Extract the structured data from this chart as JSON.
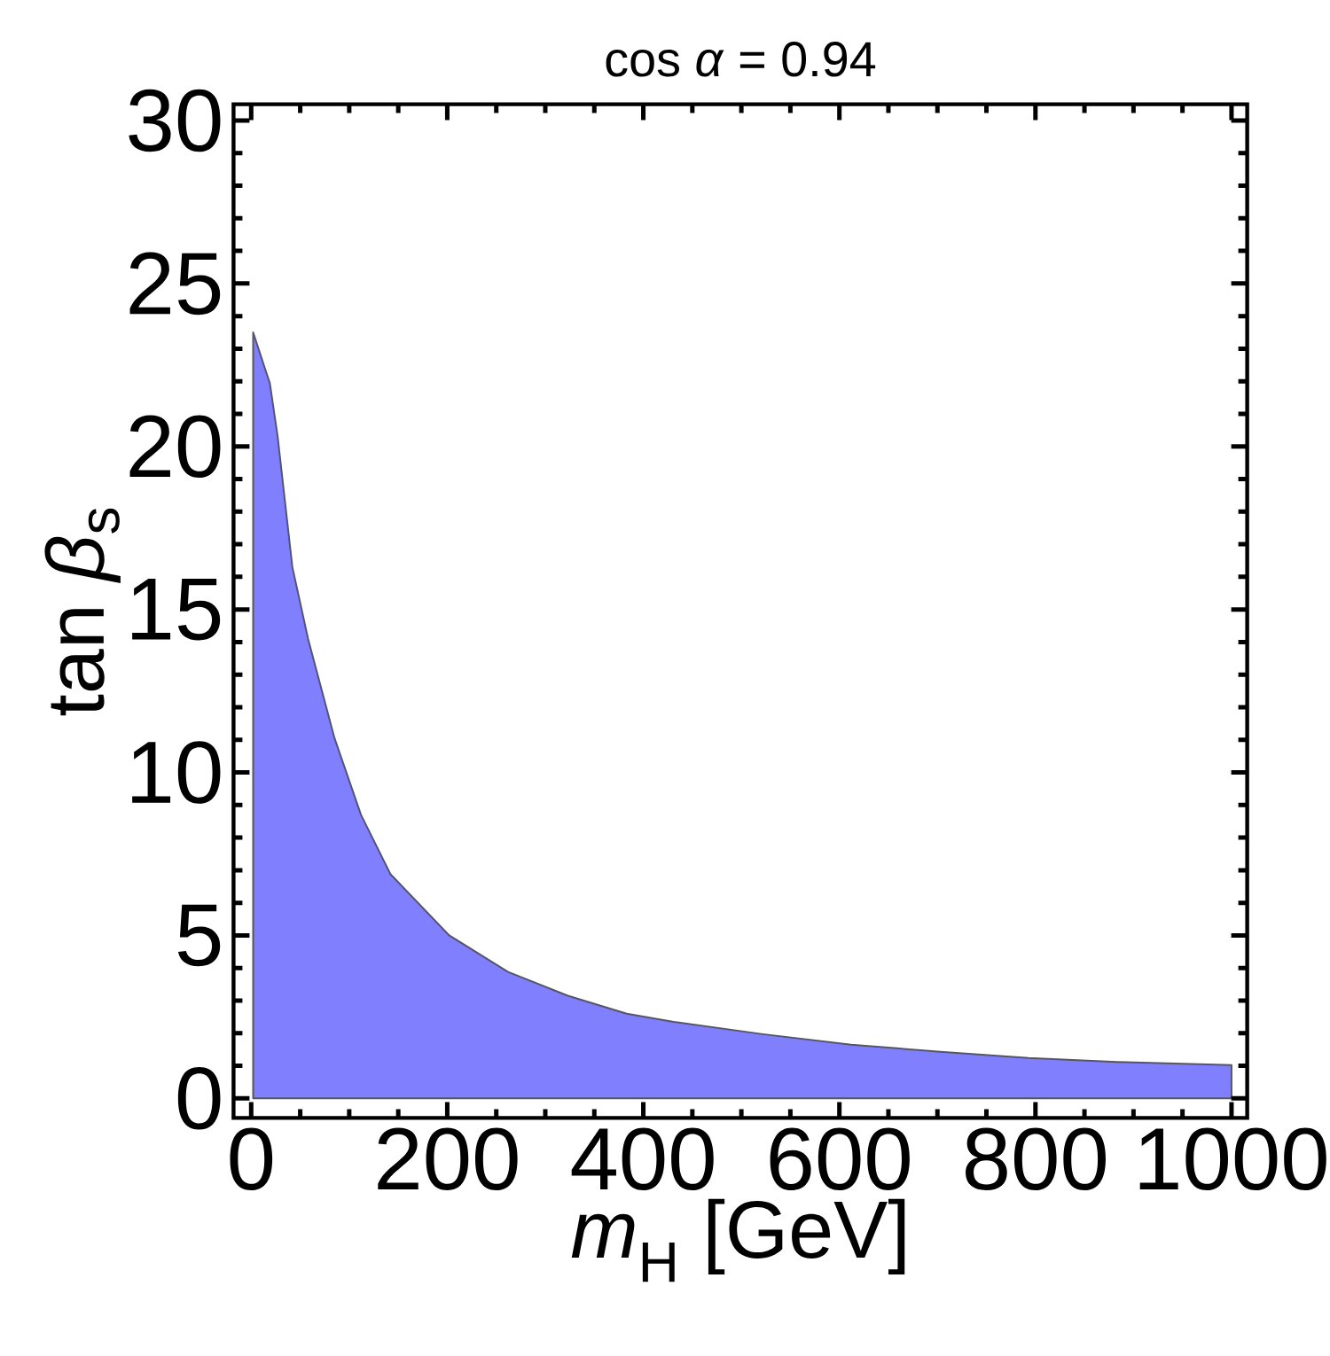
{
  "chart_data": {
    "type": "area",
    "title": "cos *α* = 0.94",
    "xlabel": "*m*$_{H}$ [GeV]",
    "ylabel": "tan *β*$_{s}$",
    "x": [
      2,
      15,
      19,
      27,
      42,
      58,
      85,
      112,
      142,
      202,
      262,
      323,
      383,
      431,
      522,
      612,
      703,
      793,
      883,
      1000
    ],
    "values": [
      23.5,
      22.3,
      21.95,
      20.3,
      16.3,
      14.1,
      11.05,
      8.7,
      6.88,
      5.0,
      3.88,
      3.15,
      2.6,
      2.35,
      1.97,
      1.65,
      1.43,
      1.24,
      1.12,
      1.02
    ],
    "color": "#8080ff",
    "xlim": [
      -18,
      1016
    ],
    "ylim": [
      -0.6,
      30.5
    ],
    "xticks": [
      0,
      200,
      400,
      600,
      800,
      1000
    ],
    "yticks": [
      0,
      5,
      10,
      15,
      20,
      25,
      30
    ]
  }
}
